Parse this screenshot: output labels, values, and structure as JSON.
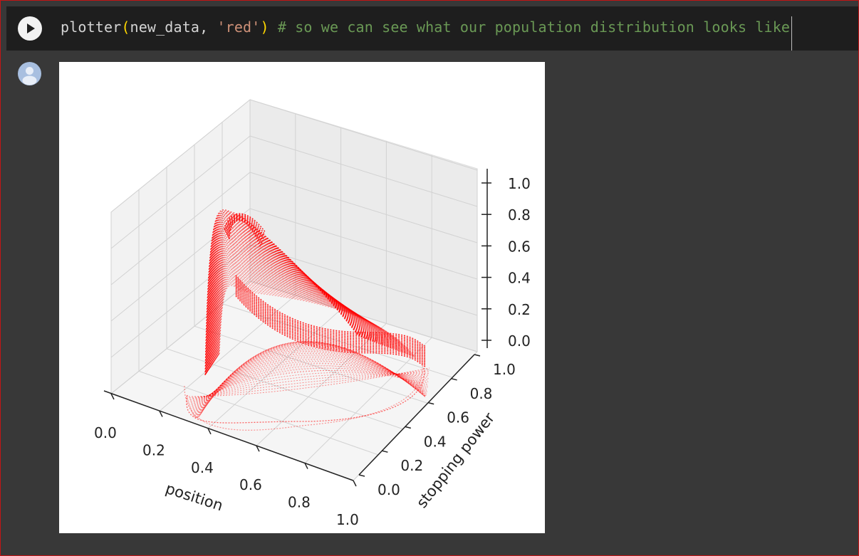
{
  "cell": {
    "code_tokens": [
      {
        "text": "plotter",
        "cls": ""
      },
      {
        "text": "(",
        "cls": "tok-paren"
      },
      {
        "text": "new_data, ",
        "cls": ""
      },
      {
        "text": "'red'",
        "cls": "tok-string"
      },
      {
        "text": ")",
        "cls": "tok-paren"
      },
      {
        "text": " # so we can see what our population distribution looks like",
        "cls": "tok-comment"
      }
    ],
    "run_icon": "play-icon",
    "avatar_icon": "user-avatar-icon"
  },
  "colors": {
    "background": "#383838",
    "input_background": "#1e1e1e",
    "plot_color": "#ff0000"
  },
  "chart_data": {
    "type": "scatter",
    "projection": "3d",
    "marker_color": "red",
    "xlabel": "position",
    "ylabel": "stopping power",
    "zlabel": "",
    "x_ticks": [
      "0.0",
      "0.2",
      "0.4",
      "0.6",
      "0.8",
      "1.0"
    ],
    "y_ticks": [
      "0.0",
      "0.2",
      "0.4",
      "0.6",
      "0.8",
      "1.0"
    ],
    "z_ticks": [
      "0.0",
      "0.2",
      "0.4",
      "0.6",
      "0.8",
      "1.0"
    ],
    "xlim": [
      0,
      1
    ],
    "ylim": [
      0,
      1
    ],
    "zlim": [
      0,
      1
    ],
    "grid": true,
    "peak_point": {
      "x": 0.3,
      "y": 0.2,
      "z": 0.8
    }
  }
}
